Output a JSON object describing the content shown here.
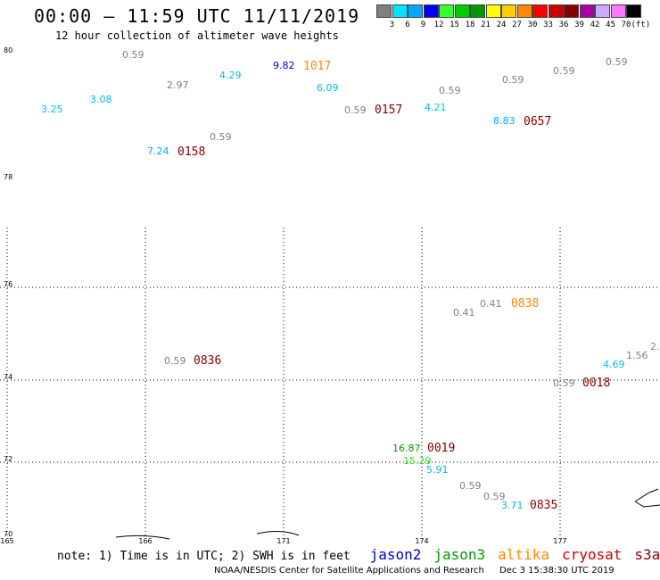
{
  "header": {
    "title": "00:00 – 11:59 UTC 11/11/2019",
    "subtitle": "12 hour collection of altimeter wave heights"
  },
  "legend": {
    "unit": "(ft)",
    "bins": [
      {
        "label": "3",
        "color": "#808080"
      },
      {
        "label": "6",
        "color": "#00e5ff"
      },
      {
        "label": "9",
        "color": "#00a8ff"
      },
      {
        "label": "12",
        "color": "#0000ff"
      },
      {
        "label": "15",
        "color": "#33ff33"
      },
      {
        "label": "18",
        "color": "#00cc00"
      },
      {
        "label": "21",
        "color": "#009900"
      },
      {
        "label": "24",
        "color": "#ffff00"
      },
      {
        "label": "27",
        "color": "#ffcc00"
      },
      {
        "label": "30",
        "color": "#ff8800"
      },
      {
        "label": "33",
        "color": "#ff0000"
      },
      {
        "label": "36",
        "color": "#cc0000"
      },
      {
        "label": "39",
        "color": "#880000"
      },
      {
        "label": "42",
        "color": "#aa00aa"
      },
      {
        "label": "45",
        "color": "#ccaaff"
      },
      {
        "label": "70",
        "color": "#ff77ff"
      },
      {
        "label": "",
        "color": "#000000"
      }
    ]
  },
  "map": {
    "lat_labels": [
      "80",
      "78",
      "76",
      "74",
      "72",
      "70"
    ],
    "lon_labels": [
      "165",
      "166",
      "171",
      "174",
      "177"
    ]
  },
  "observations": [
    {
      "text": "0.59",
      "color": "#808080",
      "kind": "value"
    },
    {
      "text": "9.82",
      "color": "#0000cc",
      "kind": "value"
    },
    {
      "text": "1017",
      "color": "#ff8800",
      "kind": "time"
    },
    {
      "text": "4.29",
      "color": "#00c0e0",
      "kind": "value"
    },
    {
      "text": "0.59",
      "color": "#808080",
      "kind": "value"
    },
    {
      "text": "0.59",
      "color": "#808080",
      "kind": "value"
    },
    {
      "text": "0.59",
      "color": "#808080",
      "kind": "value"
    },
    {
      "text": "2.97",
      "color": "#808080",
      "kind": "value"
    },
    {
      "text": "6.09",
      "color": "#00c0e0",
      "kind": "value"
    },
    {
      "text": "0.59",
      "color": "#808080",
      "kind": "value"
    },
    {
      "text": "3.08",
      "color": "#00c0e0",
      "kind": "value"
    },
    {
      "text": "3.25",
      "color": "#00c0e0",
      "kind": "value"
    },
    {
      "text": "0.59",
      "color": "#808080",
      "kind": "value"
    },
    {
      "text": "0157",
      "color": "#880000",
      "kind": "time"
    },
    {
      "text": "4.21",
      "color": "#00c0e0",
      "kind": "value"
    },
    {
      "text": "8.83",
      "color": "#00a8ff",
      "kind": "value"
    },
    {
      "text": "0657",
      "color": "#880000",
      "kind": "time"
    },
    {
      "text": "0.59",
      "color": "#808080",
      "kind": "value"
    },
    {
      "text": "7.24",
      "color": "#00a8ff",
      "kind": "value"
    },
    {
      "text": "0158",
      "color": "#880000",
      "kind": "time"
    },
    {
      "text": "0.41",
      "color": "#808080",
      "kind": "value"
    },
    {
      "text": "0.41",
      "color": "#808080",
      "kind": "value"
    },
    {
      "text": "0838",
      "color": "#ff8800",
      "kind": "time"
    },
    {
      "text": "2.",
      "color": "#808080",
      "kind": "value"
    },
    {
      "text": "1.56",
      "color": "#808080",
      "kind": "value"
    },
    {
      "text": "0.59",
      "color": "#808080",
      "kind": "value"
    },
    {
      "text": "0836",
      "color": "#880000",
      "kind": "time"
    },
    {
      "text": "4.69",
      "color": "#00c0e0",
      "kind": "value"
    },
    {
      "text": "0.59",
      "color": "#808080",
      "kind": "value"
    },
    {
      "text": "0018",
      "color": "#880000",
      "kind": "time"
    },
    {
      "text": "16.87",
      "color": "#009900",
      "kind": "value"
    },
    {
      "text": "0019",
      "color": "#880000",
      "kind": "time"
    },
    {
      "text": "15.29",
      "color": "#33dd33",
      "kind": "value"
    },
    {
      "text": "5.91",
      "color": "#00c0e0",
      "kind": "value"
    },
    {
      "text": "0.59",
      "color": "#808080",
      "kind": "value"
    },
    {
      "text": "0.59",
      "color": "#808080",
      "kind": "value"
    },
    {
      "text": "3.71",
      "color": "#00c0e0",
      "kind": "value"
    },
    {
      "text": "0835",
      "color": "#880000",
      "kind": "time"
    }
  ],
  "note": {
    "prefix": "note: 1) Time is in UTC; 2) SWH is in feet",
    "satellites": [
      {
        "name": "jason2",
        "color": "#0000cc"
      },
      {
        "name": "jason3",
        "color": "#009900"
      },
      {
        "name": "altika",
        "color": "#ff8800"
      },
      {
        "name": "cryosat",
        "color": "#cc0000"
      },
      {
        "name": "s3a",
        "color": "#880000"
      }
    ]
  },
  "credit": {
    "org": "NOAA/NESDIS Center for Satellite Applications and Research",
    "date": "Dec  3 15:38:30 UTC 2019"
  }
}
